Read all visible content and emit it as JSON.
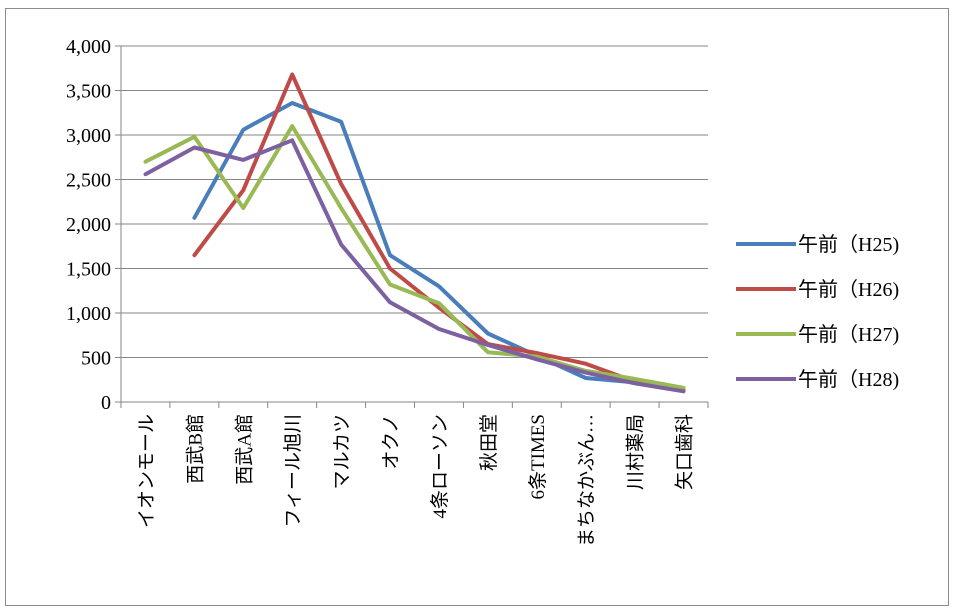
{
  "chart_data": {
    "type": "line",
    "title": "",
    "xlabel": "",
    "ylabel": "",
    "categories": [
      "イオンモール",
      "西武B館",
      "西武A館",
      "フィール旭川",
      "マルカツ",
      "オクノ",
      "4条ローソン",
      "秋田堂",
      "6条TIMES",
      "まちなかぶん…",
      "川村薬局",
      "矢口歯科"
    ],
    "ylim": [
      0,
      4000
    ],
    "yticks": [
      0,
      500,
      1000,
      1500,
      2000,
      2500,
      3000,
      3500,
      4000
    ],
    "ytick_labels": [
      "0",
      "500",
      "1,000",
      "1,500",
      "2,000",
      "2,500",
      "3,000",
      "3,500",
      "4,000"
    ],
    "grid": true,
    "legend_position": "right",
    "series": [
      {
        "name": "午前（H25)",
        "color": "#4a7ebb",
        "values": [
          null,
          2070,
          3060,
          3360,
          3150,
          1650,
          1300,
          770,
          520,
          270,
          220,
          140
        ]
      },
      {
        "name": "午前（H26)",
        "color": "#be4b48",
        "values": [
          null,
          1650,
          2380,
          3680,
          2450,
          1500,
          1060,
          650,
          550,
          430,
          230,
          130
        ]
      },
      {
        "name": "午前（H27)",
        "color": "#98b954",
        "values": [
          2700,
          2980,
          2180,
          3100,
          2180,
          1320,
          1110,
          560,
          510,
          350,
          260,
          160
        ]
      },
      {
        "name": "午前（H28)",
        "color": "#7d60a0",
        "values": [
          2560,
          2860,
          2720,
          2940,
          1770,
          1120,
          820,
          640,
          480,
          330,
          210,
          120
        ]
      }
    ]
  }
}
